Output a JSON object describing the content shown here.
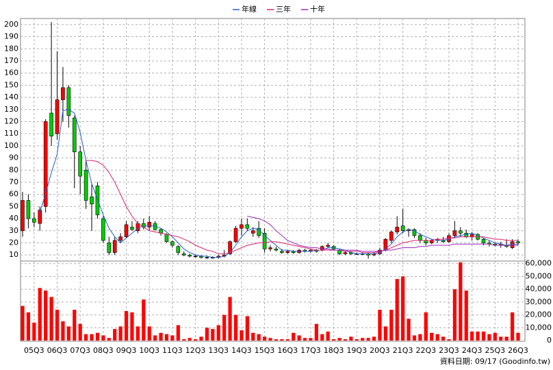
{
  "chart_data": {
    "type": "candlestick",
    "categories": [
      null,
      null,
      "05Q3",
      null,
      null,
      null,
      "06Q3",
      null,
      null,
      null,
      "07Q3",
      null,
      null,
      null,
      "08Q3",
      null,
      null,
      null,
      "09Q3",
      null,
      null,
      null,
      "10Q3",
      null,
      null,
      null,
      "11Q3",
      null,
      null,
      null,
      "12Q3",
      null,
      null,
      null,
      "13Q3",
      null,
      null,
      null,
      "14Q3",
      null,
      null,
      null,
      "15Q3",
      null,
      null,
      null,
      "16Q3",
      null,
      null,
      null,
      "17Q3",
      null,
      null,
      null,
      "18Q3",
      null,
      null,
      null,
      "19Q3",
      null,
      null,
      null,
      "20Q3",
      null,
      null,
      null,
      "21Q3",
      null,
      null,
      null,
      "22Q3",
      null,
      null,
      null,
      "23Q3",
      null,
      null,
      null,
      "24Q3",
      null,
      null,
      null,
      "25Q3",
      null,
      null,
      null,
      "26Q3"
    ],
    "open": [
      30,
      55,
      40,
      36,
      50,
      127,
      110,
      138,
      148,
      123,
      95,
      80,
      58,
      67,
      40,
      20,
      12,
      22,
      25,
      33,
      30,
      36,
      33,
      36,
      31,
      27,
      21,
      17,
      11,
      10,
      9,
      9,
      8,
      8,
      8,
      9,
      11,
      21,
      32,
      35,
      28,
      32,
      28,
      15,
      15,
      13,
      12,
      13,
      12,
      14,
      13,
      14,
      14,
      17,
      17,
      14,
      11,
      12,
      11,
      11,
      11,
      10,
      11,
      14,
      22,
      29,
      34,
      30,
      31,
      26,
      22,
      20,
      22,
      22,
      21,
      26,
      30,
      28,
      25,
      27,
      23,
      20,
      19,
      18,
      18,
      16,
      21
    ],
    "high": [
      62,
      60,
      45,
      50,
      122,
      202,
      178,
      165,
      150,
      125,
      100,
      88,
      68,
      70,
      42,
      25,
      25,
      28,
      38,
      38,
      38,
      40,
      42,
      38,
      32,
      28,
      22,
      18,
      13,
      11,
      10,
      10,
      9,
      9,
      10,
      14,
      22,
      34,
      40,
      40,
      33,
      38,
      32,
      18,
      17,
      15,
      14,
      14,
      15,
      15,
      15,
      15,
      18,
      20,
      18,
      15,
      13,
      13,
      12,
      12,
      12,
      12,
      16,
      24,
      30,
      42,
      48,
      32,
      32,
      28,
      24,
      23,
      24,
      25,
      28,
      38,
      33,
      31,
      29,
      28,
      24,
      22,
      20,
      21,
      23,
      23,
      23
    ],
    "low": [
      25,
      32,
      33,
      30,
      45,
      100,
      105,
      120,
      115,
      65,
      60,
      48,
      30,
      40,
      20,
      10,
      10,
      20,
      24,
      30,
      28,
      31,
      30,
      30,
      26,
      20,
      16,
      10,
      9,
      8,
      8,
      7,
      7,
      7,
      7,
      8,
      10,
      20,
      26,
      30,
      25,
      24,
      12,
      13,
      13,
      11,
      11,
      11,
      11,
      12,
      12,
      12,
      13,
      16,
      14,
      10,
      10,
      10,
      10,
      10,
      7,
      9,
      10,
      13,
      20,
      27,
      28,
      25,
      24,
      20,
      18,
      19,
      20,
      20,
      20,
      24,
      25,
      24,
      22,
      22,
      18,
      17,
      17,
      16,
      16,
      15,
      18
    ],
    "close": [
      55,
      40,
      37,
      47,
      120,
      108,
      138,
      148,
      125,
      95,
      75,
      55,
      52,
      43,
      22,
      12,
      22,
      25,
      35,
      31,
      36,
      33,
      37,
      31,
      28,
      21,
      18,
      12,
      10,
      9,
      9,
      8,
      8,
      8,
      9,
      10,
      21,
      32,
      35,
      32,
      30,
      26,
      15,
      16,
      14,
      12,
      13,
      12,
      14,
      13,
      14,
      13,
      17,
      18,
      15,
      11,
      12,
      11,
      11,
      11,
      10,
      11,
      14,
      23,
      29,
      33,
      30,
      31,
      26,
      22,
      20,
      22,
      23,
      21,
      26,
      30,
      28,
      25,
      27,
      23,
      20,
      19,
      18,
      19,
      17,
      21,
      20
    ],
    "up_color": "#ff0000",
    "down_color": "#00cc00",
    "series": [
      {
        "name": "年線",
        "color": "#1f5fd0",
        "values": [
          null,
          null,
          null,
          45,
          61,
          78,
          93,
          129,
          130,
          127,
          111,
          88,
          69,
          56,
          43,
          32,
          25,
          20,
          24,
          28,
          32,
          34,
          34,
          34,
          32,
          29,
          25,
          20,
          15,
          12,
          10,
          9,
          9,
          8,
          8,
          9,
          12,
          18,
          25,
          30,
          32,
          31,
          26,
          22,
          18,
          14,
          14,
          13,
          13,
          13,
          13,
          14,
          14,
          16,
          16,
          15,
          14,
          12,
          11,
          11,
          11,
          11,
          12,
          15,
          19,
          25,
          29,
          31,
          30,
          27,
          25,
          23,
          22,
          22,
          23,
          25,
          26,
          27,
          28,
          26,
          24,
          22,
          20,
          19,
          18,
          19,
          19
        ]
      },
      {
        "name": "三年",
        "color": "#e0206a",
        "values": [
          null,
          null,
          null,
          null,
          null,
          null,
          null,
          null,
          null,
          null,
          null,
          88,
          88,
          87,
          84,
          78,
          70,
          60,
          50,
          42,
          36,
          33,
          30,
          29,
          28,
          27,
          26,
          25,
          23,
          21,
          18,
          16,
          14,
          13,
          11,
          11,
          12,
          14,
          16,
          18,
          19,
          20,
          20,
          21,
          21,
          20,
          19,
          18,
          17,
          16,
          15,
          14,
          14,
          14,
          14,
          14,
          13,
          13,
          13,
          12,
          12,
          12,
          13,
          14,
          16,
          18,
          20,
          21,
          22,
          22,
          22,
          22,
          23,
          23,
          24,
          24,
          25,
          25,
          25,
          25,
          25,
          24,
          23,
          23,
          22,
          22,
          22
        ]
      },
      {
        "name": "十年",
        "color": "#9a2ab8",
        "values": [
          null,
          null,
          null,
          null,
          null,
          null,
          null,
          null,
          null,
          null,
          null,
          null,
          null,
          null,
          null,
          null,
          null,
          null,
          null,
          null,
          null,
          null,
          null,
          null,
          null,
          null,
          null,
          null,
          null,
          null,
          null,
          null,
          null,
          null,
          null,
          null,
          null,
          null,
          null,
          42,
          41,
          40,
          38,
          35,
          30,
          26,
          22,
          20,
          18,
          17,
          16,
          16,
          15,
          15,
          14,
          14,
          14,
          14,
          14,
          13,
          13,
          13,
          13,
          14,
          14,
          15,
          16,
          16,
          16,
          17,
          17,
          18,
          18,
          18,
          18,
          19,
          19,
          19,
          19,
          19,
          19,
          19,
          18,
          18,
          18,
          18,
          18
        ]
      }
    ],
    "ylim": [
      5,
      205
    ],
    "yticks": [
      10,
      20,
      30,
      40,
      50,
      60,
      70,
      80,
      90,
      100,
      110,
      120,
      130,
      140,
      150,
      160,
      170,
      180,
      190,
      200
    ],
    "grid": true,
    "volume": {
      "color": "#ff0000",
      "values": [
        27000,
        22000,
        14000,
        41000,
        39000,
        34000,
        24000,
        15000,
        11000,
        24000,
        13000,
        5000,
        5000,
        6000,
        4000,
        2000,
        9000,
        11000,
        23000,
        22000,
        11000,
        32000,
        11000,
        4000,
        6000,
        5000,
        4000,
        12000,
        1000,
        2000,
        1000,
        3000,
        10000,
        9000,
        12000,
        20000,
        34000,
        20000,
        8000,
        19000,
        6000,
        5000,
        3000,
        2000,
        1000,
        1000,
        1000,
        6000,
        4000,
        2000,
        2000,
        13000,
        5000,
        7000,
        1000,
        2000,
        1000,
        3000,
        1000,
        2000,
        2000,
        3000,
        24000,
        11000,
        24000,
        48000,
        50000,
        17000,
        4000,
        5000,
        22000,
        6000,
        5000,
        3000,
        1000,
        40000,
        61000,
        39000,
        7000,
        7000,
        7000,
        5000,
        6000,
        3000,
        3000,
        22000,
        6000
      ],
      "ylim": [
        0,
        62000
      ],
      "yticks": [
        0,
        {
          "value": 10000,
          "label": "10,000"
        },
        {
          "value": 20000,
          "label": "20,000"
        },
        {
          "value": 30000,
          "label": "30,000"
        },
        {
          "value": 40000,
          "label": "40,000"
        },
        {
          "value": 50000,
          "label": "50,000"
        },
        {
          "value": 60000,
          "label": "60,000"
        }
      ]
    },
    "footer": "資料日期: 09/17  (Goodinfo.tw)"
  }
}
